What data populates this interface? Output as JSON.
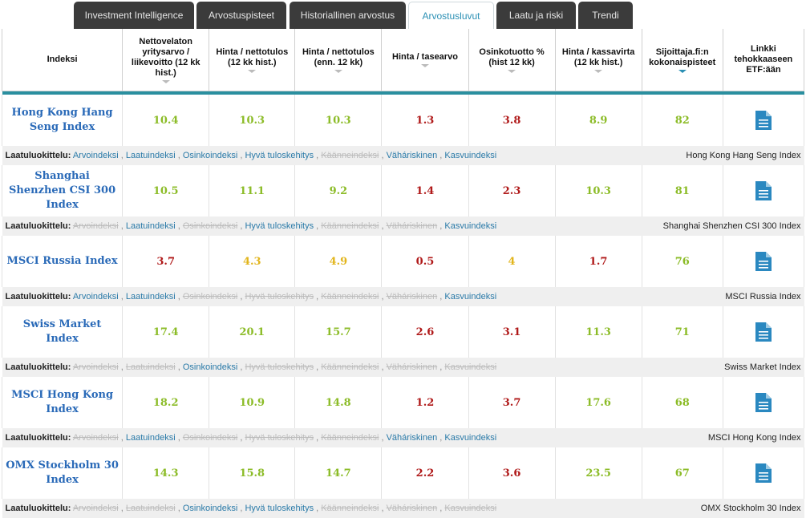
{
  "tabs": [
    {
      "label": "Investment Intelligence",
      "active": false
    },
    {
      "label": "Arvostuspisteet",
      "active": false
    },
    {
      "label": "Historiallinen arvostus",
      "active": false
    },
    {
      "label": "Arvostusluvut",
      "active": true
    },
    {
      "label": "Laatu ja riski",
      "active": false
    },
    {
      "label": "Trendi",
      "active": false
    }
  ],
  "headers": [
    "Indeksi",
    "Nettovelaton yritysarvo / liikevoitto (12 kk hist.)",
    "Hinta / nettotulos (12 kk hist.)",
    "Hinta / nettotulos (enn. 12 kk)",
    "Hinta / tasearvo",
    "Osinkotuotto % (hist 12 kk)",
    "Hinta / kassavirta (12 kk hist.)",
    "Sijoittaja.fi:n kokonaispisteet",
    "Linkki tehokkaaseen ETF:ään"
  ],
  "classification_label": "Laatuluokittelu:",
  "categories": [
    "Arvoindeksi",
    "Laatuindeksi",
    "Osinkoindeksi",
    "Hyvä tuloskehitys",
    "Käänneindeksi",
    "Väháriskinen",
    "Kasvuindeksi"
  ],
  "rows": [
    {
      "name": "Hong Kong Hang Seng Index",
      "values": [
        "10.4",
        "10.3",
        "10.3",
        "1.3",
        "3.8",
        "8.9"
      ],
      "colors": [
        "g",
        "g",
        "g",
        "r",
        "r",
        "g"
      ],
      "score": "82",
      "flags": [
        1,
        1,
        1,
        1,
        0,
        1,
        1
      ]
    },
    {
      "name": "Shanghai Shenzhen CSI 300 Index",
      "values": [
        "10.5",
        "11.1",
        "9.2",
        "1.4",
        "2.3",
        "10.3"
      ],
      "colors": [
        "g",
        "g",
        "g",
        "r",
        "r",
        "g"
      ],
      "score": "81",
      "flags": [
        0,
        1,
        0,
        1,
        0,
        0,
        1
      ]
    },
    {
      "name": "MSCI Russia Index",
      "values": [
        "3.7",
        "4.3",
        "4.9",
        "0.5",
        "4",
        "1.7"
      ],
      "colors": [
        "r",
        "y",
        "y",
        "r",
        "y",
        "r"
      ],
      "score": "76",
      "flags": [
        1,
        1,
        0,
        0,
        0,
        0,
        1
      ]
    },
    {
      "name": "Swiss Market Index",
      "values": [
        "17.4",
        "20.1",
        "15.7",
        "2.6",
        "3.1",
        "11.3"
      ],
      "colors": [
        "g",
        "g",
        "g",
        "r",
        "r",
        "g"
      ],
      "score": "71",
      "flags": [
        0,
        0,
        1,
        0,
        0,
        0,
        0
      ]
    },
    {
      "name": "MSCI Hong Kong Index",
      "values": [
        "18.2",
        "10.9",
        "14.8",
        "1.2",
        "3.7",
        "17.6"
      ],
      "colors": [
        "g",
        "g",
        "g",
        "r",
        "r",
        "g"
      ],
      "score": "68",
      "flags": [
        0,
        1,
        0,
        0,
        0,
        1,
        1
      ]
    },
    {
      "name": "OMX Stockholm 30 Index",
      "values": [
        "14.3",
        "15.8",
        "14.7",
        "2.2",
        "3.6",
        "23.5"
      ],
      "colors": [
        "g",
        "g",
        "g",
        "r",
        "r",
        "g"
      ],
      "score": "67",
      "flags": [
        0,
        0,
        1,
        1,
        0,
        0,
        0
      ]
    }
  ]
}
